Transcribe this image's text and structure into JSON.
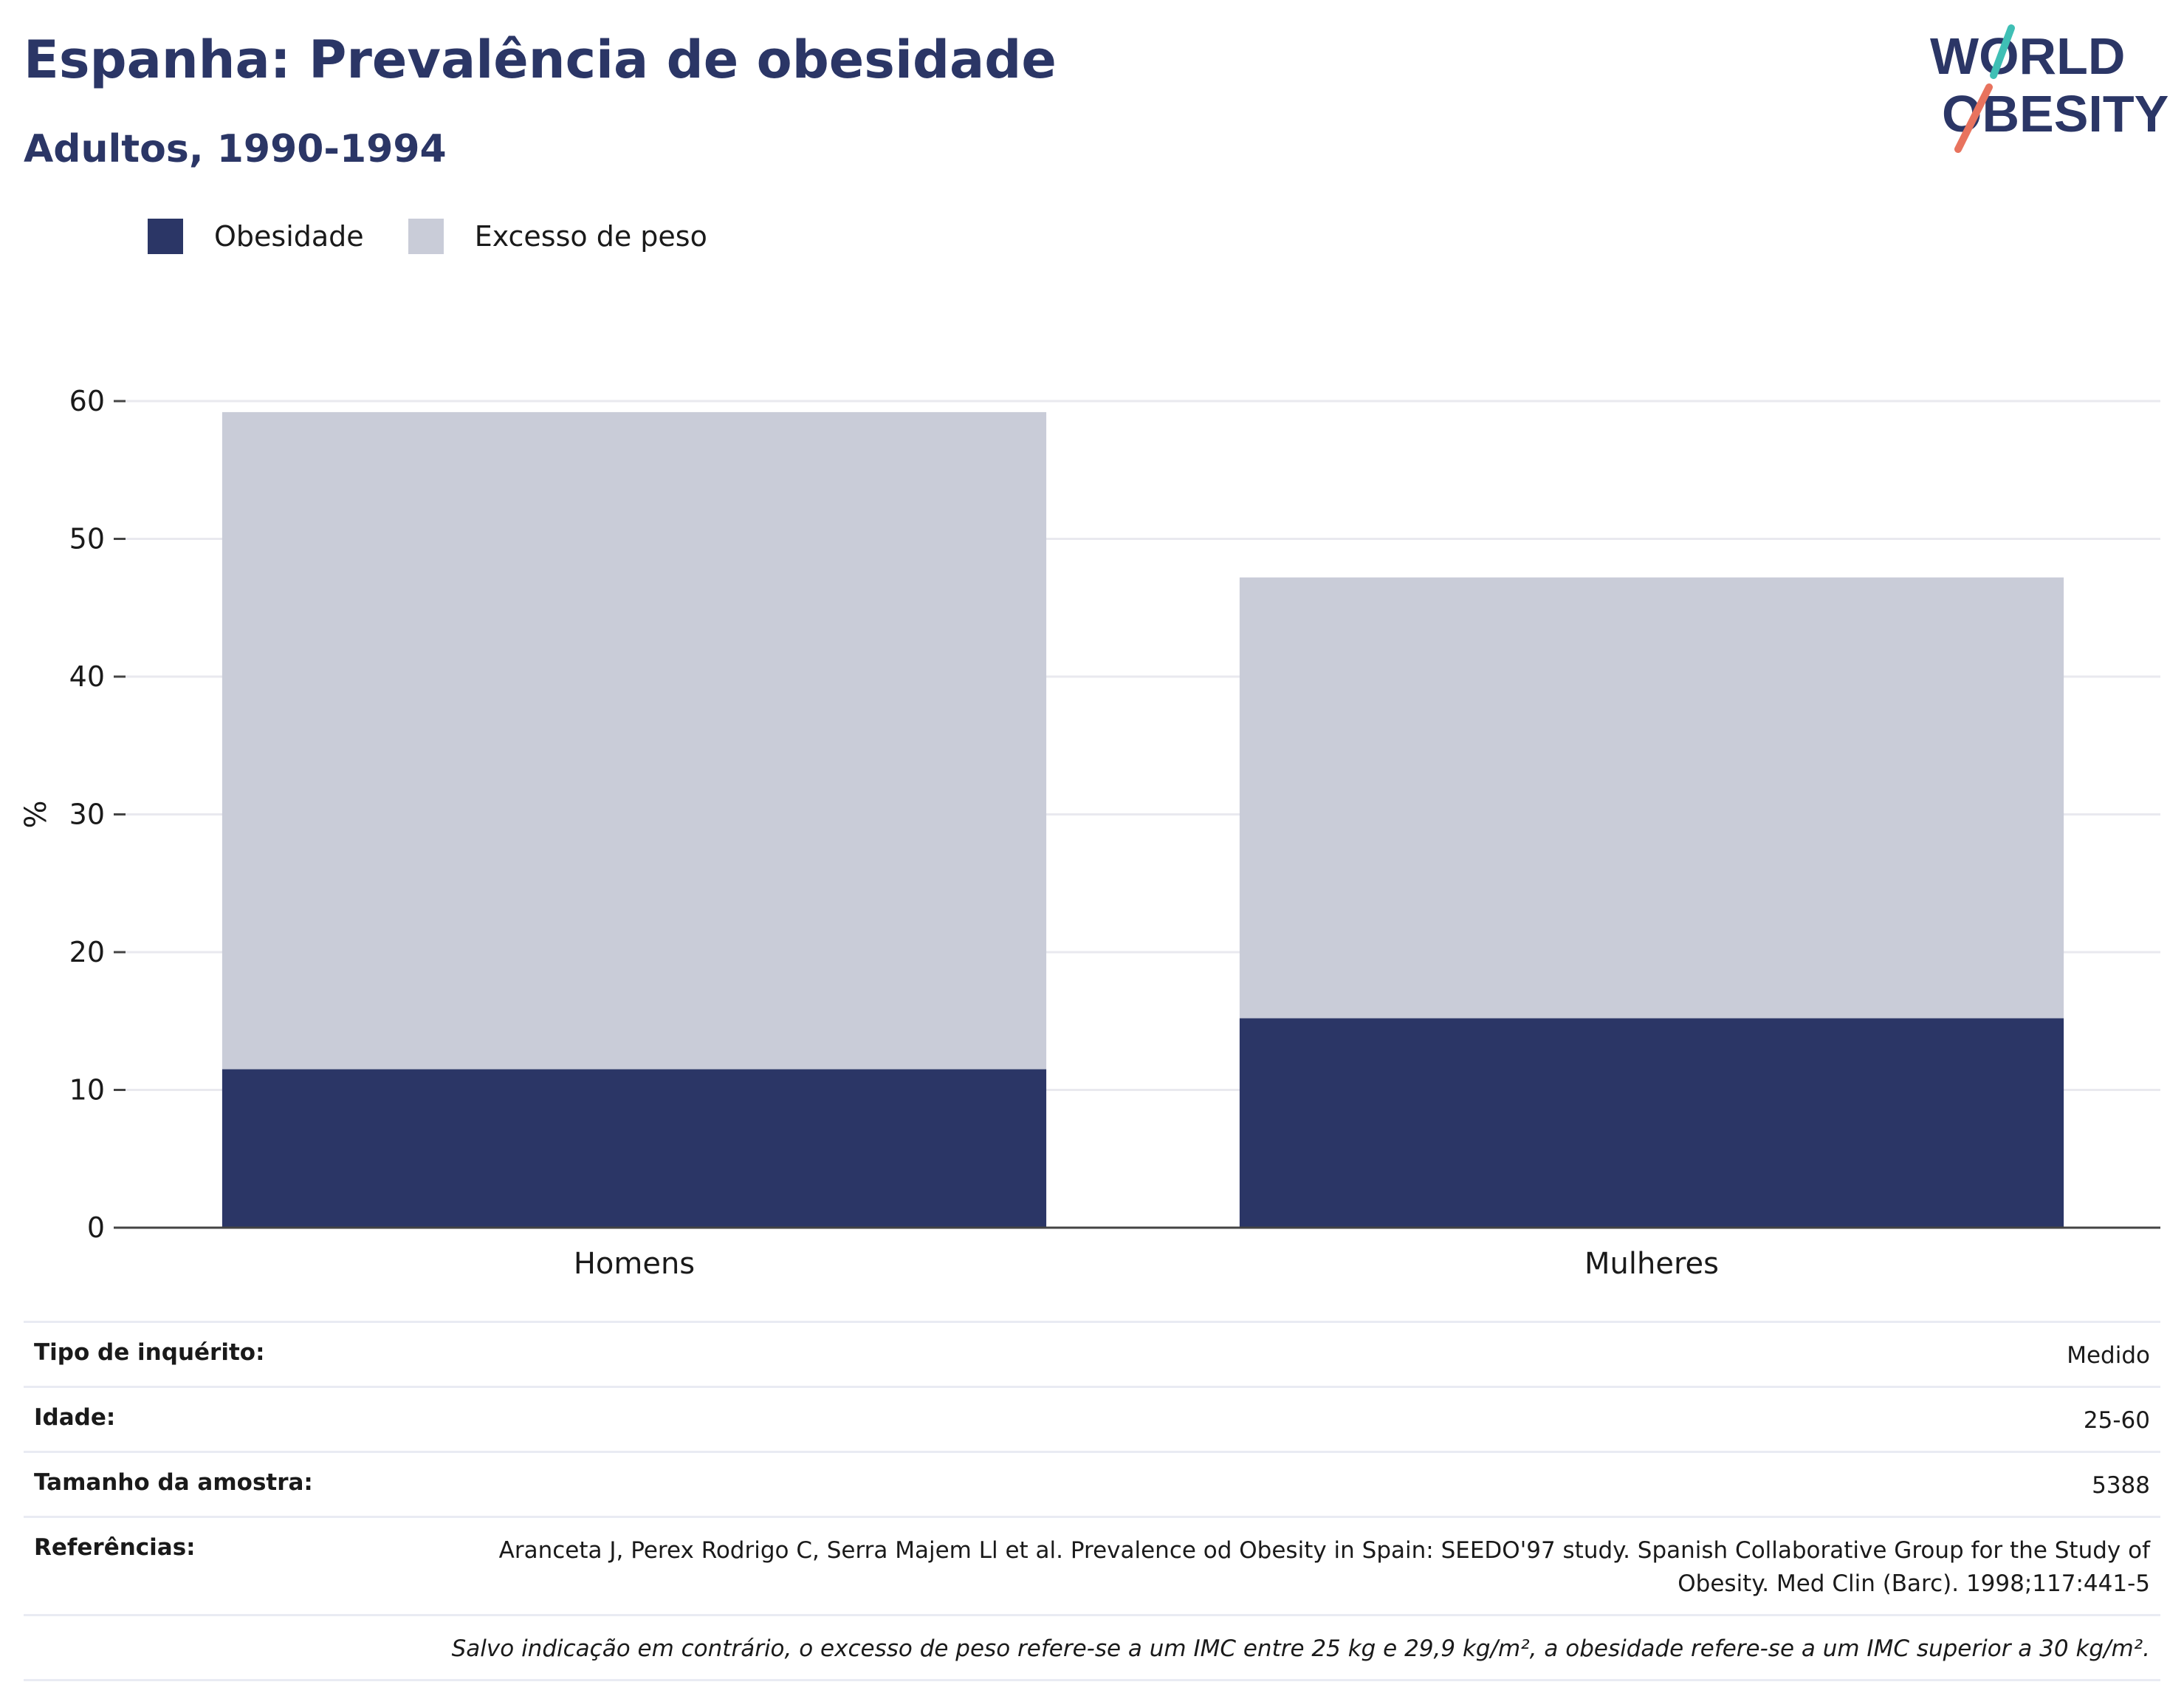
{
  "header": {
    "title": "Espanha: Prevalência de obesidade",
    "subtitle": "Adultos, 1990-1994"
  },
  "logo": {
    "line1": "WORLD",
    "line2": "OBESITY"
  },
  "colors": {
    "obesity": "#2b3666",
    "overweight": "#c9ccd8",
    "accent_teal": "#3fbfb5",
    "accent_coral": "#e8735e"
  },
  "chart_data": {
    "type": "bar",
    "stacked": true,
    "categories": [
      "Homens",
      "Mulheres"
    ],
    "series": [
      {
        "name": "Obesidade",
        "values": [
          11.5,
          15.2
        ]
      },
      {
        "name": "Excesso de peso",
        "values": [
          47.7,
          32.0
        ]
      }
    ],
    "totals": [
      59.2,
      47.2
    ],
    "ylabel": "%",
    "ylim": [
      0,
      60
    ],
    "yticks": [
      0,
      10,
      20,
      30,
      40,
      50,
      60
    ],
    "grid": true,
    "legend_position": "top-left"
  },
  "info": {
    "survey_label": "Tipo de inquérito:",
    "survey_value": "Medido",
    "age_label": "Idade:",
    "age_value": "25-60",
    "sample_label": "Tamanho da amostra:",
    "sample_value": "5388",
    "ref_label": "Referências:",
    "ref_value": "Aranceta J, Perex Rodrigo C, Serra Majem Ll et al. Prevalence od Obesity in Spain: SEEDO'97 study. Spanish Collaborative Group for the Study of Obesity. Med Clin (Barc). 1998;117:441-5",
    "note": "Salvo indicação em contrário, o excesso de peso refere-se a um IMC entre 25 kg e 29,9 kg/m², a obesidade refere-se a um IMC superior a 30 kg/m²."
  }
}
